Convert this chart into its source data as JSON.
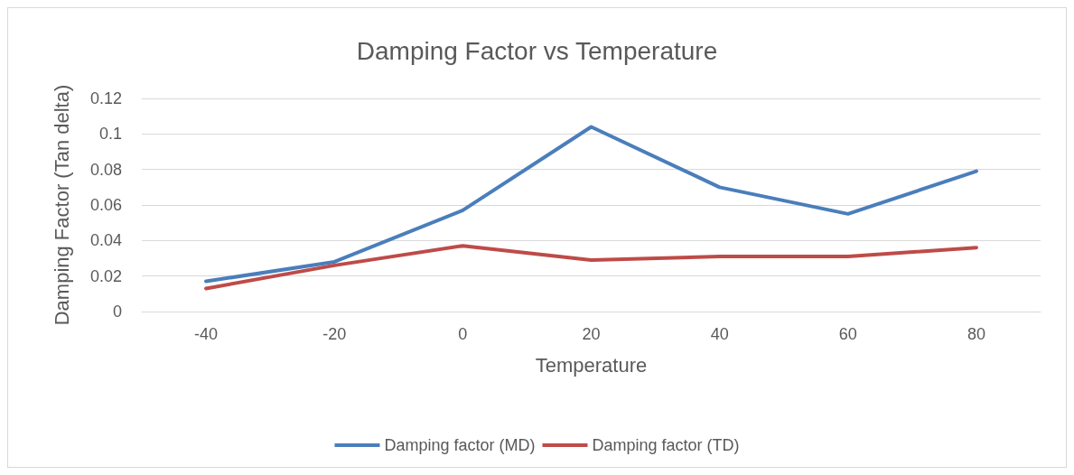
{
  "chart_data": {
    "type": "line",
    "title": "Damping Factor vs Temperature",
    "xlabel": "Temperature",
    "ylabel": "Damping Factor (Tan delta)",
    "categories": [
      "-40",
      "-20",
      "0",
      "20",
      "40",
      "60",
      "80"
    ],
    "series": [
      {
        "name": "Damping factor (MD)",
        "color": "#4a7ebb",
        "values": [
          0.017,
          0.028,
          0.057,
          0.104,
          0.07,
          0.055,
          0.079
        ]
      },
      {
        "name": "Damping factor (TD)",
        "color": "#be4b48",
        "values": [
          0.013,
          0.026,
          0.037,
          0.029,
          0.031,
          0.031,
          0.036
        ]
      }
    ],
    "ylim": [
      0,
      0.12
    ],
    "yticks": [
      0,
      0.02,
      0.04,
      0.06,
      0.08,
      0.1,
      0.12
    ],
    "grid": "y",
    "legend": "bottom",
    "marker": "none",
    "line_style": "solid"
  }
}
